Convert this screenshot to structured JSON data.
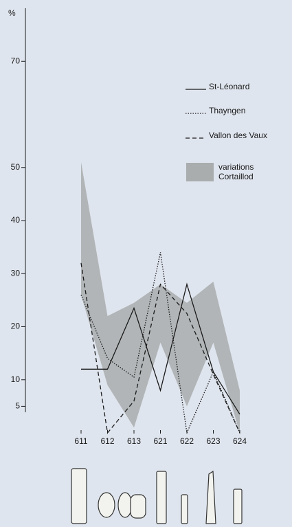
{
  "chart_data": {
    "type": "line",
    "y_label": "%",
    "categories": [
      "611",
      "612",
      "613",
      "621",
      "622",
      "623",
      "624"
    ],
    "series": [
      {
        "name": "St-Léonard",
        "color": "#1a1a1a",
        "dash": "solid",
        "values": [
          12,
          12,
          23.5,
          8,
          28,
          11.5,
          3.5
        ]
      },
      {
        "name": "Thayngen",
        "color": "#1a1a1a",
        "dash": "dotted",
        "values": [
          26,
          14,
          10.5,
          34,
          0,
          11.5,
          0
        ]
      },
      {
        "name": "Vallon des Vaux",
        "color": "#1a1a1a",
        "dash": "dashed",
        "values": [
          32,
          0,
          6,
          28,
          22.5,
          11,
          0
        ]
      }
    ],
    "band": {
      "name": "variations Cortaillod",
      "color": "#a9adad",
      "upper": [
        51,
        22,
        24.5,
        28,
        24.5,
        28.5,
        8
      ],
      "lower": [
        26,
        9,
        1,
        17,
        5,
        17,
        0
      ]
    },
    "ylim": [
      0,
      80
    ],
    "yticks": [
      5,
      10,
      20,
      30,
      40,
      50,
      70
    ],
    "legend": "upper right"
  }
}
